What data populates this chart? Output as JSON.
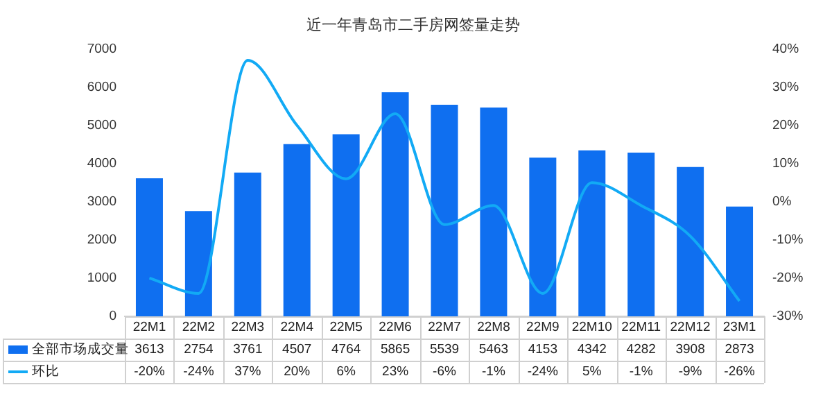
{
  "chart_data": {
    "type": "bar",
    "title": "近一年青岛市二手房网签量走势",
    "categories": [
      "22M1",
      "22M2",
      "22M3",
      "22M4",
      "22M5",
      "22M6",
      "22M7",
      "22M8",
      "22M9",
      "22M10",
      "22M11",
      "22M12",
      "23M1"
    ],
    "series": [
      {
        "name": "全部市场成交量",
        "color": "#0f6ff0",
        "values": [
          3613,
          2754,
          3761,
          4507,
          4764,
          5865,
          5539,
          5463,
          4153,
          4342,
          4282,
          3908,
          2873
        ],
        "value_labels": [
          "3613",
          "2754",
          "3761",
          "4507",
          "4764",
          "5865",
          "5539",
          "5463",
          "4153",
          "4342",
          "4282",
          "3908",
          "2873"
        ]
      },
      {
        "name": "环比",
        "type": "line",
        "axis": "y2",
        "color": "#12aaf5",
        "marker": "none",
        "values": [
          -20,
          -24,
          37,
          20,
          6,
          23,
          -6,
          -1,
          -24,
          5,
          -1,
          -9,
          -26
        ],
        "value_labels": [
          "-20%",
          "-24%",
          "37%",
          "20%",
          "6%",
          "23%",
          "-6%",
          "-1%",
          "-24%",
          "5%",
          "-1%",
          "-9%",
          "-26%"
        ]
      }
    ],
    "ylim": [
      0,
      7000
    ],
    "yticks": [
      0,
      1000,
      2000,
      3000,
      4000,
      5000,
      6000,
      7000
    ],
    "y2lim": [
      -30,
      40
    ],
    "y2ticks": [
      {
        "value": -30,
        "label": "-30%"
      },
      {
        "value": -20,
        "label": "-20%"
      },
      {
        "value": -10,
        "label": "-10%"
      },
      {
        "value": 0,
        "label": "0%"
      },
      {
        "value": 10,
        "label": "10%"
      },
      {
        "value": 20,
        "label": "20%"
      },
      {
        "value": 30,
        "label": "30%"
      },
      {
        "value": 40,
        "label": "40%"
      }
    ],
    "legend": "bottom"
  }
}
